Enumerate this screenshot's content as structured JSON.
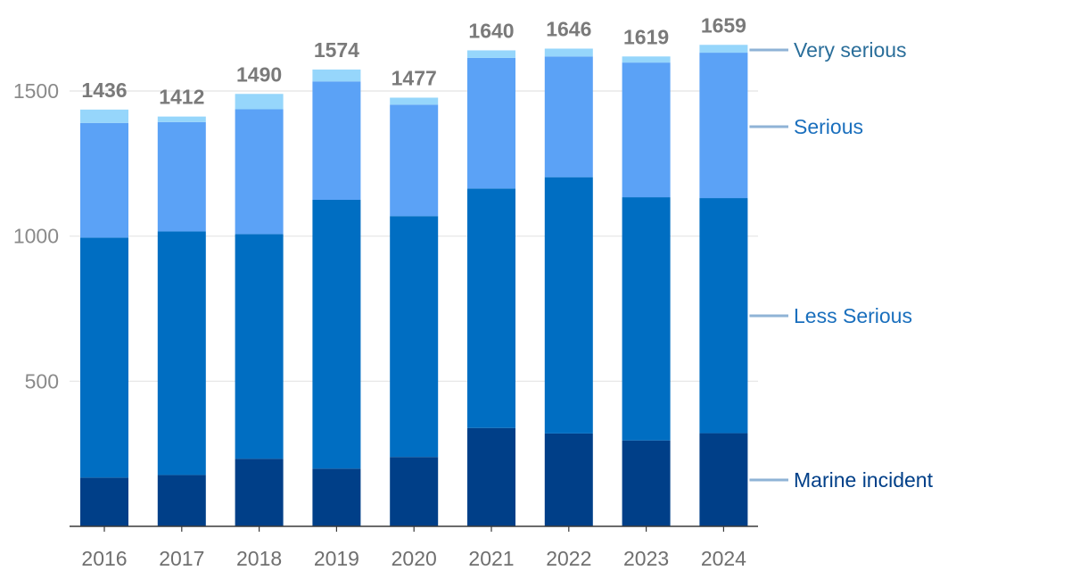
{
  "chart_data": {
    "type": "bar",
    "stacked": true,
    "title": "",
    "xlabel": "",
    "ylabel": "",
    "ylim": [
      0,
      1700
    ],
    "yticks": [
      500,
      1000,
      1500
    ],
    "categories": [
      "2016",
      "2017",
      "2018",
      "2019",
      "2020",
      "2021",
      "2022",
      "2023",
      "2024"
    ],
    "series": [
      {
        "name": "Marine incident",
        "color": "#003f88",
        "values": [
          168,
          177,
          233,
          199,
          239,
          339,
          320,
          296,
          321
        ]
      },
      {
        "name": "Less Serious",
        "color": "#006ec2",
        "values": [
          827,
          839,
          774,
          926,
          830,
          825,
          883,
          838,
          810
        ]
      },
      {
        "name": "Serious",
        "color": "#5ba2f6",
        "values": [
          395,
          377,
          430,
          408,
          384,
          450,
          416,
          464,
          501
        ]
      },
      {
        "name": "Very serious",
        "color": "#96d6fb",
        "values": [
          46,
          19,
          53,
          41,
          24,
          26,
          27,
          21,
          27
        ]
      }
    ],
    "totals": [
      1436,
      1412,
      1490,
      1574,
      1477,
      1640,
      1646,
      1619,
      1659
    ],
    "legend_placement": "right",
    "legend_label_colors": {
      "Marine incident": "#003f88",
      "Less Serious": "#1a6fbd",
      "Serious": "#1a6fbd",
      "Very serious": "#2a6e9a"
    },
    "grid": true
  }
}
